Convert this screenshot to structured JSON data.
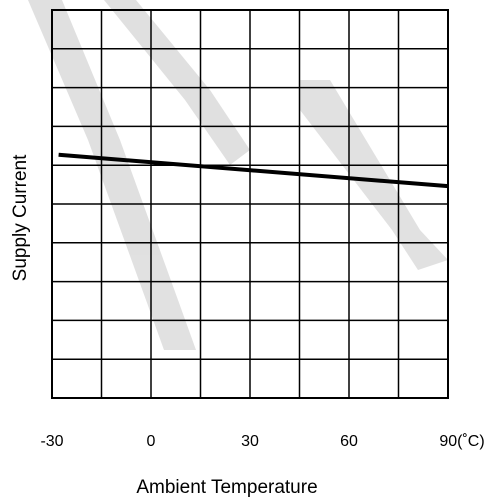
{
  "chart_data": {
    "type": "line",
    "xlabel": "Ambient Temperature",
    "ylabel": "Supply Current",
    "xlim": [
      -30,
      90
    ],
    "x_tick_values": [
      -30,
      0,
      30,
      60,
      90
    ],
    "x_tick_labels": [
      "-30",
      "0",
      "30",
      "60",
      "90(˚C)"
    ],
    "y_tick_labels": [],
    "grid": true,
    "grid_columns": 8,
    "grid_rows": 10,
    "series": [
      {
        "x": [
          -28,
          90
        ],
        "y": [
          6.27,
          5.46
        ]
      }
    ],
    "ylim": [
      0,
      10
    ],
    "line_color": "#000000",
    "watermark_color": "#c8c8c8"
  }
}
